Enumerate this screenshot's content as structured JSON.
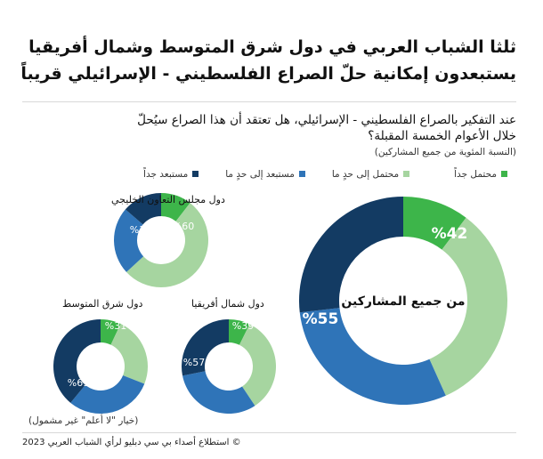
{
  "title_line1": "ثلثا الشباب العربي في دول شرق المتوسط وشمال أفريقيا",
  "title_line2": "يستبعدون إمكانية حلّ الصراع الفلسطيني - الإسرائيلي قريباً",
  "question_line1": "عند التفكير  بالصراع الفلسطيني - الإسرائيلي،  هل تعتقد أن هذا الصراع سيُحلّ",
  "question_line2": "خلال الأعوام الخمسة المقبلة؟",
  "subtitle": "(النسبة المئوية من جميع المشاركين)",
  "note": "(خيار \"لا أعلم\" غير مشمول)",
  "footer": "©  استطلاع أصداء بي سي دبليو لرأي الشباب العربي 2023",
  "colors": {
    "very_likely": "#3db54a",
    "somewhat_likely": "#a6d5a0",
    "somewhat_unlikely": "#2f74b8",
    "very_unlikely": "#133b63"
  },
  "chart_data": [
    {
      "type": "pie",
      "title": "من جميع المشاركين",
      "legend": [
        "محتمل جداً",
        "محتمل إلى حدٍ ما",
        "مستبعد إلى حدٍ ما",
        "مستبعد جداً"
      ],
      "values": [
        10,
        32,
        29,
        26
      ],
      "labels": {
        "likely": "%42",
        "unlikely": "%55"
      }
    },
    {
      "type": "pie",
      "title": "دول مجلس التعاون الخليجي",
      "values": [
        10,
        50,
        22,
        13
      ],
      "labels": {
        "likely": "%60",
        "unlikely": "%35"
      }
    },
    {
      "type": "pie",
      "title": "دول شرق المتوسط",
      "values": [
        7,
        24,
        30,
        39
      ],
      "labels": {
        "likely": "%31",
        "unlikely": "%69"
      }
    },
    {
      "type": "pie",
      "title": "دول شمال أفريقيا",
      "values": [
        7,
        32,
        30,
        27
      ],
      "labels": {
        "likely": "%39",
        "unlikely": "%57"
      }
    }
  ]
}
